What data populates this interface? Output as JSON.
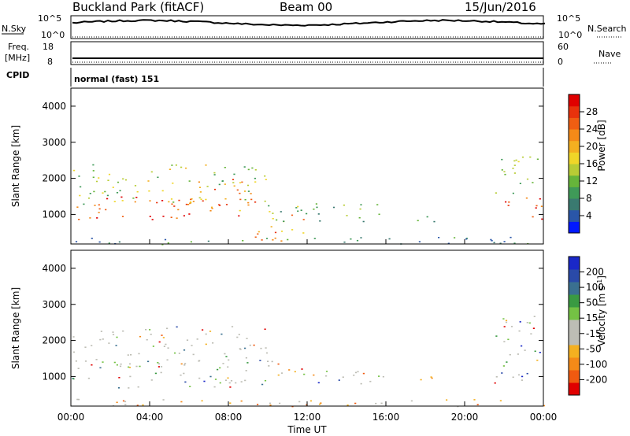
{
  "header": {
    "station": "Buckland Park (fitACF)",
    "beam": "Beam 00",
    "date": "15/Jun/2016"
  },
  "top_panels": {
    "nsky_label": "N.Sky",
    "nsky_ticks": [
      "10^5",
      "10^0"
    ],
    "nsearch_label": "N.Search",
    "nsearch_ticks": [
      "10^5",
      "10^0"
    ],
    "freq_label": "Freq.",
    "freq_unit": "[MHz]",
    "freq_ticks": [
      "18",
      "8"
    ],
    "nave_label": "Nave",
    "nave_ticks": [
      "60",
      "0"
    ],
    "cpid_label": "CPID",
    "cpid_value": "normal (fast) 151"
  },
  "chart_data": [
    {
      "type": "heatmap",
      "name": "power",
      "ylabel": "Slant Range [km]",
      "xlabel": "",
      "xlim": [
        0,
        24
      ],
      "ylim": [
        180,
        4500
      ],
      "yticks": [
        "1000",
        "2000",
        "3000",
        "4000"
      ],
      "colorbar": {
        "label": "Power [dB]",
        "range": [
          0,
          32
        ],
        "ticks": [
          "4",
          "8",
          "12",
          "16",
          "20",
          "24",
          "28"
        ],
        "colors": [
          "#0018ff",
          "#2a56a8",
          "#3a7a70",
          "#3f9a58",
          "#66b53a",
          "#b8cc35",
          "#f0d628",
          "#f4b020",
          "#f48a18",
          "#f05e12",
          "#e8320c",
          "#e00000"
        ]
      },
      "regions": [
        {
          "t0": 0.0,
          "t1": 10.0,
          "r0": 1300,
          "r1": 2400,
          "level": 0.45
        },
        {
          "t0": 0.0,
          "t1": 9.0,
          "r0": 850,
          "r1": 1500,
          "level": 0.85
        },
        {
          "t0": 6.0,
          "t1": 9.5,
          "r0": 1100,
          "r1": 2000,
          "level": 0.72
        },
        {
          "t0": 9.0,
          "t1": 12.0,
          "r0": 250,
          "r1": 1100,
          "level": 0.7
        },
        {
          "t0": 10.0,
          "t1": 16.0,
          "r0": 800,
          "r1": 1400,
          "level": 0.35
        },
        {
          "t0": 17.5,
          "t1": 19.0,
          "r0": 800,
          "r1": 1100,
          "level": 0.3
        },
        {
          "t0": 21.5,
          "t1": 24.0,
          "r0": 1600,
          "r1": 2700,
          "level": 0.45
        },
        {
          "t0": 21.8,
          "t1": 24.0,
          "r0": 800,
          "r1": 1500,
          "level": 0.85
        },
        {
          "t0": 0.0,
          "t1": 24.0,
          "r0": 180,
          "r1": 400,
          "level": 0.25
        }
      ]
    },
    {
      "type": "heatmap",
      "name": "velocity",
      "ylabel": "Slant Range [km]",
      "xlabel": "Time UT",
      "xlim": [
        0,
        24
      ],
      "ylim": [
        180,
        4500
      ],
      "xticks": [
        "00:00",
        "04:00",
        "08:00",
        "12:00",
        "16:00",
        "20:00",
        "00:00"
      ],
      "yticks": [
        "1000",
        "2000",
        "3000",
        "4000"
      ],
      "colorbar": {
        "label": "Velocity [m s^-1]",
        "range": [
          -250,
          250
        ],
        "ticks": [
          "-200",
          "-100",
          "-50",
          "-15",
          "15",
          "50",
          "100",
          "200"
        ],
        "colors": [
          "#e00000",
          "#f05a10",
          "#f48a18",
          "#f4b020",
          "#bdbdb5",
          "#bdbdb5",
          "#74c244",
          "#3a9a42",
          "#3a7090",
          "#2a4aa8",
          "#1a28c8"
        ]
      },
      "regions": [
        {
          "t0": 0.0,
          "t1": 10.0,
          "r0": 1300,
          "r1": 2400,
          "level": 0.5
        },
        {
          "t0": 0.0,
          "t1": 10.5,
          "r0": 700,
          "r1": 1500,
          "level": 0.5
        },
        {
          "t0": 10.0,
          "t1": 16.0,
          "r0": 800,
          "r1": 1300,
          "level": 0.5
        },
        {
          "t0": 17.5,
          "t1": 19.0,
          "r0": 800,
          "r1": 1100,
          "level": 0.25
        },
        {
          "t0": 21.5,
          "t1": 24.0,
          "r0": 800,
          "r1": 2700,
          "level": 0.5
        },
        {
          "t0": 0.0,
          "t1": 24.0,
          "r0": 180,
          "r1": 400,
          "level": 0.3
        }
      ]
    }
  ]
}
